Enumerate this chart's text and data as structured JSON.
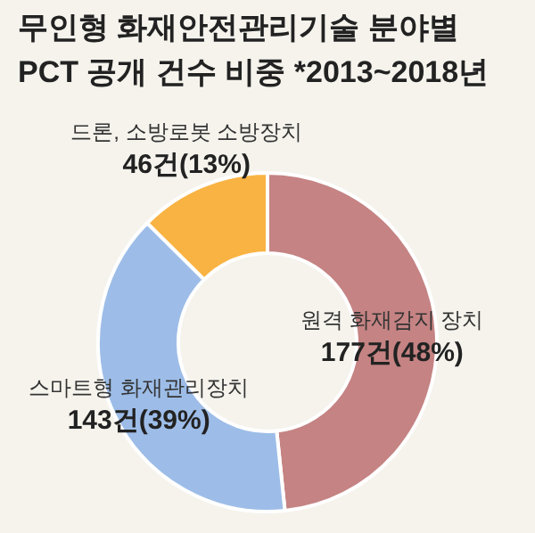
{
  "chart_data": {
    "type": "donut",
    "title": "무인형 화재안전관리기술 분야별\nPCT 공개 건수 비중 *2013~2018년",
    "categories": [
      "원격 화재감지 장치",
      "스마트형 화재관리장치",
      "드론, 소방로봇 소방장치"
    ],
    "values": [
      177,
      143,
      46
    ],
    "value_labels": [
      "177건(48%)",
      "143건(39%)",
      "46건(13%)"
    ],
    "colors": [
      "#c58383",
      "#9dbde8",
      "#f9b343"
    ]
  }
}
